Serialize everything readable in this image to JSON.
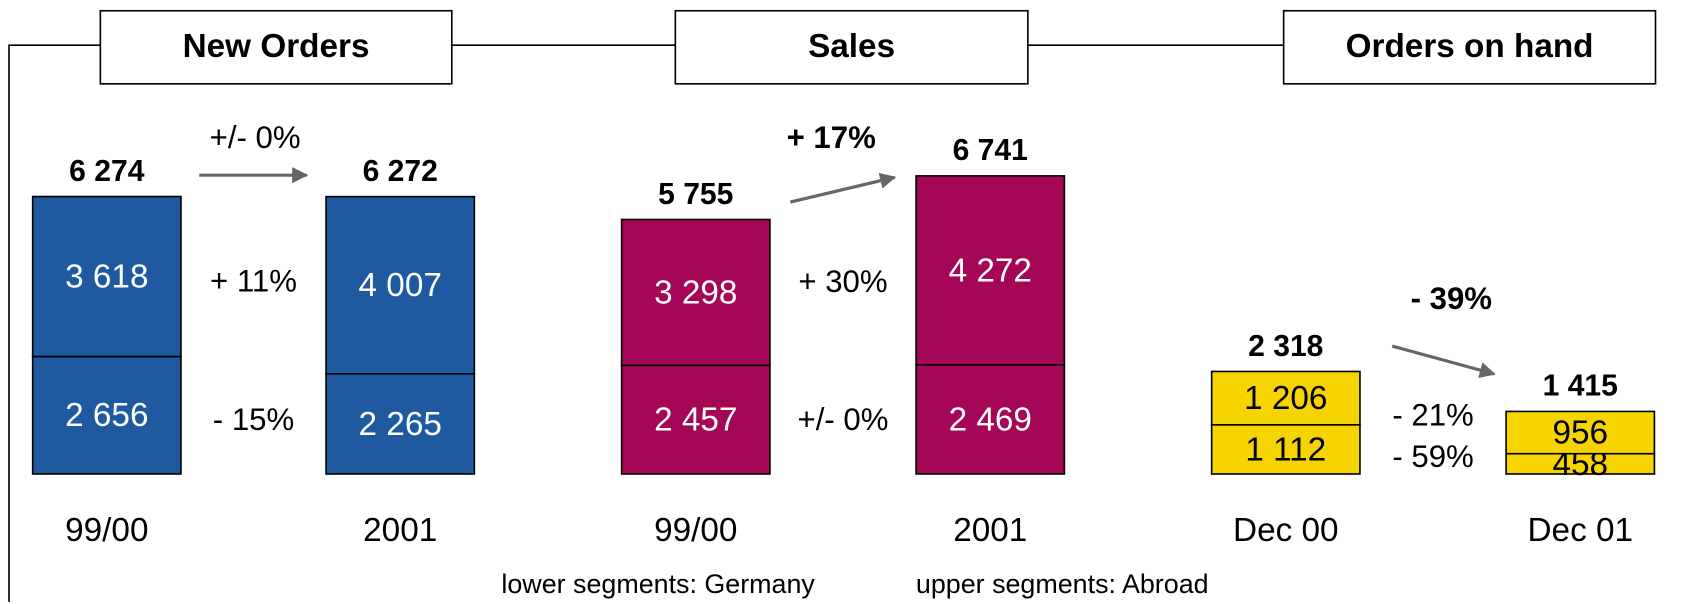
{
  "chart_data": [
    {
      "type": "stacked-bar",
      "title": "New Orders",
      "categories": [
        "99/00",
        "2001"
      ],
      "ylim": [
        0,
        7000
      ],
      "series": [
        {
          "color": "#1f5aa0",
          "values": [
            2656,
            2265
          ],
          "value_labels": [
            "2 656",
            "2 265"
          ],
          "change": "- 15%"
        },
        {
          "color": "#1f5aa0",
          "values": [
            3618,
            4007
          ],
          "value_labels": [
            "3 618",
            "4 007"
          ],
          "change": "+ 11%"
        }
      ],
      "totals": [
        6274,
        6272
      ],
      "total_labels": [
        "6 274",
        "6 272"
      ],
      "total_change": "+/- 0%"
    },
    {
      "type": "stacked-bar",
      "title": "Sales",
      "categories": [
        "99/00",
        "2001"
      ],
      "ylim": [
        0,
        7000
      ],
      "series": [
        {
          "color": "#a50756",
          "values": [
            2457,
            2469
          ],
          "value_labels": [
            "2 457",
            "2 469"
          ],
          "change": "+/- 0%"
        },
        {
          "color": "#a50756",
          "values": [
            3298,
            4272
          ],
          "value_labels": [
            "3 298",
            "4 272"
          ],
          "change": "+ 30%"
        }
      ],
      "totals": [
        5755,
        6741
      ],
      "total_labels": [
        "5 755",
        "6 741"
      ],
      "total_change": "+ 17%"
    },
    {
      "type": "stacked-bar",
      "title": "Orders on hand",
      "categories": [
        "Dec 00",
        "Dec 01"
      ],
      "ylim": [
        0,
        7000
      ],
      "series": [
        {
          "color": "#f5d400",
          "values": [
            1112,
            458
          ],
          "value_labels": [
            "1 112",
            "458"
          ],
          "change": "- 59%"
        },
        {
          "color": "#f5d400",
          "values": [
            1206,
            956
          ],
          "value_labels": [
            "1 206",
            "956"
          ],
          "change": "- 21%"
        }
      ],
      "totals": [
        2318,
        1415
      ],
      "total_labels": [
        "2 318",
        "1 415"
      ],
      "total_change": "- 39%"
    }
  ],
  "legend": [
    "lower segments: Germany",
    "upper segments: Abroad"
  ]
}
